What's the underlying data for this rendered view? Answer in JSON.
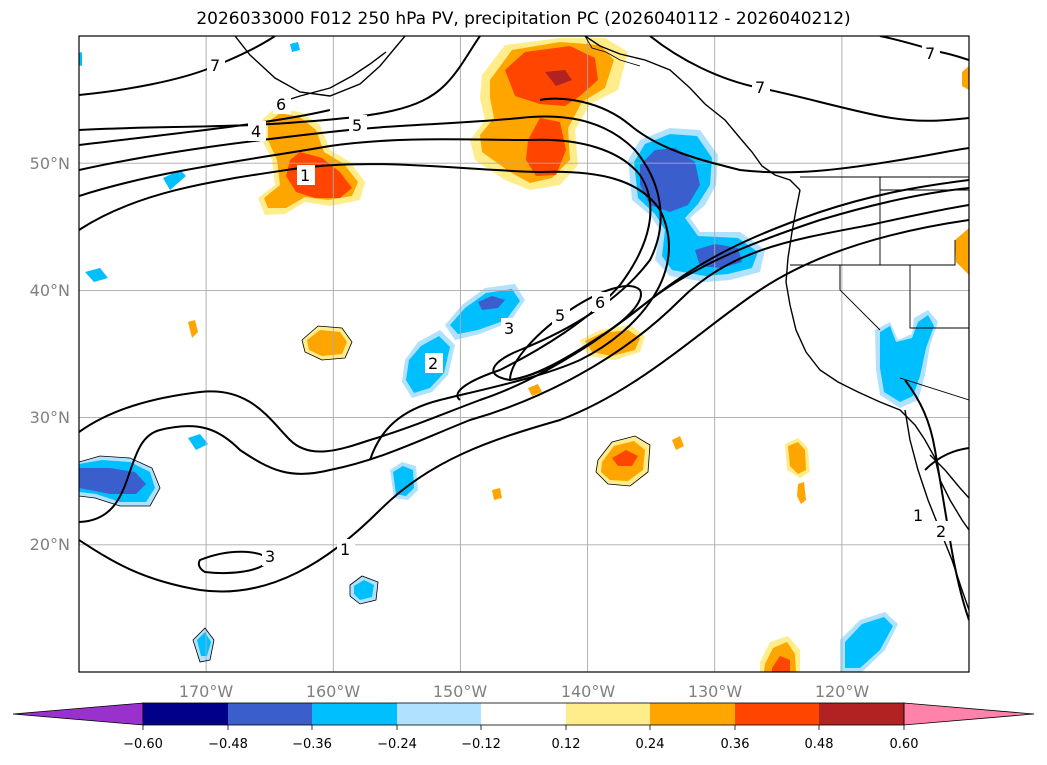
{
  "title": "2026033000 F012 250 hPa PV, precipitation PC (2026040112 - 2026040212)",
  "map": {
    "lon_range": [
      -180,
      -110
    ],
    "lat_range": [
      10,
      60
    ],
    "lat_ticks": [
      {
        "lat": 50,
        "label": "50°N"
      },
      {
        "lat": 40,
        "label": "40°N"
      },
      {
        "lat": 30,
        "label": "30°N"
      },
      {
        "lat": 20,
        "label": "20°N"
      }
    ],
    "lon_ticks": [
      {
        "lon": -170,
        "label": "170°W"
      },
      {
        "lon": -160,
        "label": "160°W"
      },
      {
        "lon": -150,
        "label": "150°W"
      },
      {
        "lon": -140,
        "label": "140°W"
      },
      {
        "lon": -130,
        "label": "130°W"
      },
      {
        "lon": -120,
        "label": "120°W"
      }
    ]
  },
  "pv_contour_labels": [
    "7",
    "7",
    "7",
    "6",
    "6",
    "5",
    "5",
    "4",
    "3",
    "2",
    "1",
    "1",
    "1",
    "2",
    "3"
  ],
  "colorbar": {
    "levels": [
      -0.6,
      -0.48,
      -0.36,
      -0.24,
      -0.12,
      0.12,
      0.24,
      0.36,
      0.48,
      0.6
    ],
    "labels": [
      "−0.60",
      "−0.48",
      "−0.36",
      "−0.24",
      "−0.12",
      "0.12",
      "0.24",
      "0.36",
      "0.48",
      "0.60"
    ],
    "colors": [
      "#9932cc",
      "#00008b",
      "#3a5fcd",
      "#00bfff",
      "#b0e2ff",
      "#ffffff",
      "#ffec8b",
      "#ffa500",
      "#ff4500",
      "#b22222",
      "#ff82ab"
    ]
  },
  "precip_colors": {
    "neg_strong": "#3a5fcd",
    "neg_mid": "#00bfff",
    "neg_weak": "#b0e2ff",
    "pos_weak": "#ffec8b",
    "pos_mid": "#ffa500",
    "pos_strong": "#ff4500",
    "pos_max": "#b22222"
  }
}
